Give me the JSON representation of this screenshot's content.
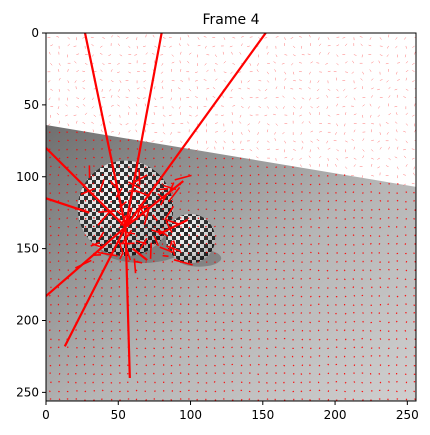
{
  "figure": {
    "title": "Frame 4",
    "x_ticks": [
      "0",
      "50",
      "100",
      "150",
      "200",
      "250"
    ],
    "y_ticks": [
      "0",
      "50",
      "100",
      "150",
      "200",
      "250"
    ],
    "x_range": [
      0,
      256
    ],
    "y_range": [
      0,
      256
    ],
    "image_colors": {
      "sky": "#ffffff",
      "floor_dark": "#7d7d7d",
      "floor_light": "#c8c8c8",
      "flow_vectors": "#ff0000"
    },
    "horizon_line": {
      "left_y": 64,
      "right_y": 107
    },
    "balls": [
      {
        "name": "large-checkered-ball",
        "cx": 55,
        "cy": 122,
        "r": 33
      },
      {
        "name": "small-checkered-ball",
        "cx": 100,
        "cy": 143,
        "r": 17
      }
    ],
    "long_flow_vectors": [
      [
        [
          55,
          135
        ],
        [
          27,
          0
        ]
      ],
      [
        [
          55,
          135
        ],
        [
          80,
          0
        ]
      ],
      [
        [
          55,
          135
        ],
        [
          152,
          0
        ]
      ],
      [
        [
          55,
          135
        ],
        [
          0,
          80
        ]
      ],
      [
        [
          55,
          135
        ],
        [
          0,
          183
        ]
      ],
      [
        [
          55,
          135
        ],
        [
          13,
          218
        ]
      ],
      [
        [
          55,
          135
        ],
        [
          58,
          240
        ]
      ],
      [
        [
          55,
          135
        ],
        [
          95,
          103
        ]
      ],
      [
        [
          30,
          125
        ],
        [
          0,
          115
        ]
      ],
      [
        [
          78,
          140
        ],
        [
          98,
          130
        ]
      ],
      [
        [
          60,
          150
        ],
        [
          70,
          158
        ]
      ]
    ]
  }
}
